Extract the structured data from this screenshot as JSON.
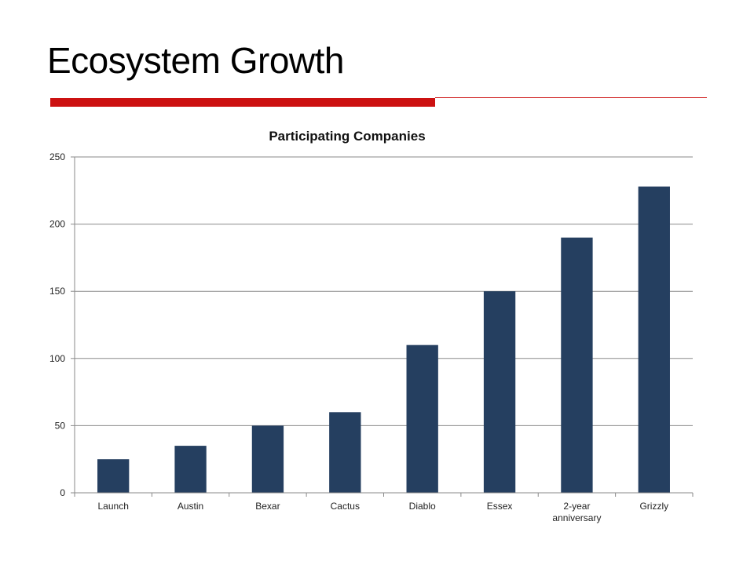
{
  "slide": {
    "title": "Ecosystem Growth",
    "accent_color": "#cc1111"
  },
  "chart_data": {
    "type": "bar",
    "title": "Participating Companies",
    "xlabel": "",
    "ylabel": "",
    "categories": [
      "Launch",
      "Austin",
      "Bexar",
      "Cactus",
      "Diablo",
      "Essex",
      "2-year anniversary",
      "Grizzly"
    ],
    "values": [
      25,
      35,
      50,
      60,
      110,
      150,
      190,
      228
    ],
    "ylim": [
      0,
      250
    ],
    "yticks": [
      0,
      50,
      100,
      150,
      200,
      250
    ],
    "grid": true,
    "legend": "none",
    "bar_color": "#253f60"
  }
}
